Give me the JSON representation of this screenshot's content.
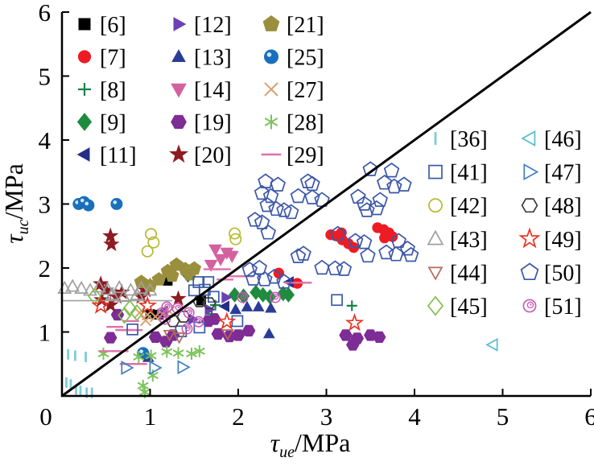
{
  "chart_data": {
    "type": "scatter",
    "title": "",
    "xlabel_tau": "τ",
    "xlabel_sub": "ue",
    "xlabel_unit": "/MPa",
    "ylabel_tau": "τ",
    "ylabel_sub": "uc",
    "ylabel_unit": "/MPa",
    "xlim": [
      0,
      6
    ],
    "ylim": [
      0,
      6
    ],
    "x_axis": {
      "ticks": [
        "0",
        "1",
        "2",
        "3",
        "4",
        "5",
        "6"
      ]
    },
    "y_axis": {
      "ticks": [
        "0",
        "1",
        "2",
        "3",
        "4",
        "5",
        "6"
      ]
    },
    "reference_line": {
      "from": [
        0,
        0
      ],
      "to": [
        6,
        6
      ],
      "color": "#000000",
      "width": 3
    },
    "legend_left": {
      "cols": [
        [
          "[6]",
          "[7]",
          "[8]",
          "[9]",
          "[11]"
        ],
        [
          "[12]",
          "[13]",
          "[14]",
          "[19]",
          "[20]"
        ],
        [
          "[21]",
          "[25]",
          "[27]",
          "[28]",
          "[29]"
        ]
      ]
    },
    "legend_right": {
      "cols": [
        [
          "[36]",
          "[41]",
          "[42]",
          "[43]",
          "[44]",
          "[45]"
        ],
        [
          "[46]",
          "[47]",
          "[48]",
          "[49]",
          "[50]",
          "[51]"
        ]
      ]
    },
    "series": [
      {
        "ref": "[6]",
        "marker": "square",
        "filled": true,
        "color": "#000000",
        "size": 11,
        "points": [
          [
            1.2,
            1.8
          ],
          [
            1.0,
            1.28
          ],
          [
            1.1,
            1.27
          ],
          [
            1.58,
            1.49
          ]
        ]
      },
      {
        "ref": "[7]",
        "marker": "circle",
        "filled": true,
        "color": "#ed1c24",
        "size": 13,
        "points": [
          [
            3.05,
            2.52
          ],
          [
            3.12,
            2.5
          ],
          [
            3.18,
            2.44
          ],
          [
            3.25,
            2.38
          ],
          [
            3.31,
            2.32
          ],
          [
            3.17,
            2.55
          ],
          [
            3.58,
            2.63
          ],
          [
            3.65,
            2.6
          ],
          [
            3.71,
            2.55
          ],
          [
            3.66,
            2.47
          ],
          [
            3.75,
            2.49
          ],
          [
            2.67,
            1.76
          ],
          [
            2.46,
            1.92
          ]
        ]
      },
      {
        "ref": "[8]",
        "marker": "plus",
        "filled": false,
        "color": "#16834a",
        "size": 13,
        "points": [
          [
            1.74,
            1.42
          ],
          [
            1.7,
            1.28
          ],
          [
            3.29,
            1.41
          ]
        ]
      },
      {
        "ref": "[9]",
        "marker": "diamond",
        "filled": true,
        "color": "#1e8b3e",
        "size": 14,
        "points": [
          [
            1.43,
            1.89
          ],
          [
            1.96,
            1.58
          ],
          [
            2.06,
            1.56
          ],
          [
            2.28,
            1.58
          ],
          [
            2.36,
            1.55
          ],
          [
            2.51,
            1.6
          ],
          [
            2.57,
            1.58
          ],
          [
            2.2,
            1.62
          ]
        ]
      },
      {
        "ref": "[11]",
        "marker": "tri-left",
        "filled": true,
        "color": "#252f87",
        "size": 13,
        "points": [
          [
            1.85,
            1.4
          ],
          [
            2.58,
            1.78
          ],
          [
            1.15,
            1.32
          ]
        ]
      },
      {
        "ref": "[12]",
        "marker": "tri-right",
        "filled": true,
        "color": "#6b42b4",
        "size": 13,
        "points": [
          [
            1.48,
            1.2
          ],
          [
            1.86,
            1.54
          ],
          [
            1.67,
            1.35
          ]
        ]
      },
      {
        "ref": "[13]",
        "marker": "tri-up",
        "filled": true,
        "color": "#2a3d96",
        "size": 13,
        "points": [
          [
            2.1,
            1.39
          ],
          [
            2.23,
            1.39
          ],
          [
            2.37,
            1.37
          ],
          [
            1.97,
            1.35
          ],
          [
            2.35,
            0.97
          ],
          [
            0.98,
            0.6
          ]
        ]
      },
      {
        "ref": "[14]",
        "marker": "tri-down",
        "filled": true,
        "color": "#d4619f",
        "size": 15,
        "points": [
          [
            1.74,
            2.29
          ],
          [
            1.87,
            2.24
          ],
          [
            1.8,
            2.14
          ],
          [
            1.69,
            2.05
          ],
          [
            1.93,
            2.19
          ]
        ]
      },
      {
        "ref": "[19]",
        "marker": "hexagon",
        "filled": true,
        "color": "#7e2c96",
        "size": 14,
        "points": [
          [
            0.55,
            0.91
          ],
          [
            0.63,
            1.27
          ],
          [
            1.06,
            0.92
          ],
          [
            1.18,
            0.85
          ],
          [
            1.26,
            0.95
          ],
          [
            1.73,
            1.2
          ],
          [
            1.66,
            1.17
          ],
          [
            1.77,
            0.97
          ],
          [
            1.9,
            0.93
          ],
          [
            2.0,
            0.95
          ],
          [
            2.12,
            1.02
          ],
          [
            3.22,
            0.95
          ],
          [
            3.35,
            0.9
          ],
          [
            3.5,
            0.95
          ],
          [
            3.6,
            0.92
          ],
          [
            3.3,
            0.8
          ]
        ]
      },
      {
        "ref": "[20]",
        "marker": "star",
        "filled": true,
        "color": "#8e1b22",
        "size": 14,
        "points": [
          [
            0.55,
            2.5
          ],
          [
            0.56,
            2.37
          ],
          [
            0.44,
            1.75
          ],
          [
            0.5,
            1.65
          ],
          [
            0.45,
            1.5
          ],
          [
            0.55,
            1.42
          ],
          [
            0.62,
            1.55
          ],
          [
            0.68,
            1.62
          ],
          [
            0.9,
            1.55
          ],
          [
            0.95,
            1.65
          ],
          [
            1.0,
            1.72
          ],
          [
            1.32,
            1.52
          ]
        ]
      },
      {
        "ref": "[21]",
        "marker": "pentagon",
        "filled": true,
        "color": "#9a8f3d",
        "size": 15,
        "points": [
          [
            0.9,
            1.78
          ],
          [
            1.0,
            1.72
          ],
          [
            1.1,
            1.82
          ],
          [
            1.2,
            1.95
          ],
          [
            1.3,
            2.05
          ],
          [
            1.4,
            1.98
          ],
          [
            1.5,
            1.99
          ],
          [
            1.25,
            1.88
          ],
          [
            1.45,
            1.9
          ]
        ]
      },
      {
        "ref": "[25]",
        "marker": "sphere",
        "filled": true,
        "color": "#1a6fba",
        "size": 14,
        "points": [
          [
            0.19,
            3.0
          ],
          [
            0.25,
            3.03
          ],
          [
            0.3,
            2.98
          ],
          [
            0.62,
            3.0
          ],
          [
            0.92,
            0.67
          ]
        ]
      },
      {
        "ref": "[27]",
        "marker": "xcross",
        "filled": false,
        "color": "#daa170",
        "size": 13,
        "points": [
          [
            0.88,
            1.3
          ],
          [
            0.97,
            1.27
          ],
          [
            1.06,
            1.24
          ],
          [
            1.14,
            1.28
          ],
          [
            0.95,
            1.18
          ],
          [
            1.22,
            1.32
          ]
        ]
      },
      {
        "ref": "[28]",
        "marker": "asterisk",
        "filled": false,
        "color": "#7cc25b",
        "size": 15,
        "points": [
          [
            0.47,
            0.66
          ],
          [
            0.87,
            0.61
          ],
          [
            1.01,
            0.63
          ],
          [
            1.19,
            0.69
          ],
          [
            1.32,
            0.67
          ],
          [
            1.03,
            0.32
          ],
          [
            0.92,
            0.16
          ],
          [
            1.47,
            0.66
          ],
          [
            0.94,
            0.06
          ],
          [
            1.56,
            0.7
          ]
        ]
      },
      {
        "ref": "[29]",
        "marker": "dash",
        "filled": false,
        "color": "#e070a8",
        "size": 16,
        "points": [
          [
            0.52,
            0.7
          ],
          [
            0.66,
            0.7
          ],
          [
            0.7,
            1.03
          ],
          [
            0.82,
            1.03
          ],
          [
            0.6,
            1.08
          ],
          [
            0.78,
            1.17
          ],
          [
            0.75,
            0.5
          ],
          [
            0.87,
            0.5
          ],
          [
            1.7,
            1.98
          ],
          [
            1.82,
            1.98
          ],
          [
            1.97,
            1.87
          ],
          [
            2.08,
            1.87
          ],
          [
            1.85,
            1.82
          ],
          [
            2.62,
            1.77
          ],
          [
            2.74,
            1.77
          ]
        ]
      },
      {
        "ref": "[36]",
        "marker": "vbar",
        "filled": false,
        "color": "#7fccd8",
        "size": 13,
        "points": [
          [
            0.07,
            0.65
          ],
          [
            0.15,
            0.63
          ],
          [
            0.27,
            0.61
          ],
          [
            0.05,
            0.21
          ],
          [
            0.1,
            0.18
          ],
          [
            0.16,
            0.1
          ],
          [
            0.21,
            0.08
          ],
          [
            0.28,
            0.05
          ],
          [
            0.34,
            0.05
          ]
        ]
      },
      {
        "ref": "[41]",
        "marker": "square",
        "filled": false,
        "color": "#3a5aa8",
        "size": 13,
        "points": [
          [
            1.55,
            1.78
          ],
          [
            1.66,
            1.78
          ],
          [
            1.5,
            1.65
          ],
          [
            1.62,
            1.66
          ],
          [
            1.72,
            1.55
          ],
          [
            1.56,
            1.07
          ],
          [
            0.8,
            1.04
          ],
          [
            1.35,
            1.01
          ],
          [
            1.99,
            1.17
          ],
          [
            3.12,
            1.5
          ]
        ]
      },
      {
        "ref": "[42]",
        "marker": "circle",
        "filled": false,
        "color": "#b8b832",
        "size": 14,
        "points": [
          [
            1.01,
            2.53
          ],
          [
            1.04,
            2.4
          ],
          [
            0.97,
            2.26
          ],
          [
            1.97,
            2.45
          ],
          [
            1.96,
            2.54
          ]
        ]
      },
      {
        "ref": "[43]",
        "marker": "tri-up",
        "filled": false,
        "color": "#a0a0a0",
        "size": 15,
        "baseline": {
          "y": 1.49,
          "x1": 0.0,
          "x2": 1.25
        },
        "points": [
          [
            0.03,
            1.68
          ],
          [
            0.12,
            1.71
          ],
          [
            0.22,
            1.68
          ],
          [
            0.32,
            1.65
          ],
          [
            0.42,
            1.7
          ],
          [
            0.52,
            1.66
          ],
          [
            0.65,
            1.69
          ],
          [
            0.78,
            1.65
          ],
          [
            0.9,
            1.68
          ],
          [
            1.0,
            1.65
          ],
          [
            0.57,
            1.58
          ],
          [
            0.85,
            1.58
          ],
          [
            0.7,
            1.55
          ]
        ]
      },
      {
        "ref": "[44]",
        "marker": "tri-down",
        "filled": false,
        "color": "#b5685c",
        "size": 13,
        "points": [
          [
            1.22,
            0.96
          ],
          [
            1.33,
            0.92
          ],
          [
            1.88,
            0.97
          ]
        ]
      },
      {
        "ref": "[45]",
        "marker": "diamond",
        "filled": false,
        "color": "#83bd52",
        "size": 15,
        "points": [
          [
            0.37,
            1.56
          ],
          [
            0.77,
            1.37
          ],
          [
            0.71,
            1.26
          ],
          [
            0.85,
            1.3
          ]
        ]
      },
      {
        "ref": "[46]",
        "marker": "tri-left",
        "filled": false,
        "color": "#55bccd",
        "size": 14,
        "points": [
          [
            4.89,
            0.8
          ]
        ]
      },
      {
        "ref": "[47]",
        "marker": "tri-right",
        "filled": false,
        "color": "#3f7fc1",
        "size": 15,
        "points": [
          [
            0.73,
            0.44
          ],
          [
            1.05,
            0.44
          ],
          [
            1.37,
            0.45
          ]
        ]
      },
      {
        "ref": "[48]",
        "marker": "hexagon",
        "filled": false,
        "color": "#3c3c3c",
        "size": 14,
        "points": [
          [
            1.56,
            1.48
          ],
          [
            1.67,
            1.45
          ],
          [
            1.26,
            1.17
          ],
          [
            1.38,
            1.24
          ]
        ]
      },
      {
        "ref": "[49]",
        "marker": "star",
        "filled": false,
        "color": "#e93323",
        "size": 15,
        "points": [
          [
            0.44,
            1.41
          ],
          [
            0.97,
            1.41
          ],
          [
            1.87,
            1.16
          ],
          [
            3.32,
            1.14
          ]
        ]
      },
      {
        "ref": "[50]",
        "marker": "pentagon",
        "filled": false,
        "color": "#3b57a8",
        "size": 16,
        "points": [
          [
            2.31,
            3.35
          ],
          [
            2.45,
            3.3
          ],
          [
            2.27,
            3.17
          ],
          [
            2.37,
            3.12
          ],
          [
            2.79,
            3.35
          ],
          [
            2.84,
            3.31
          ],
          [
            2.68,
            3.12
          ],
          [
            2.84,
            3.1
          ],
          [
            2.95,
            3.06
          ],
          [
            2.33,
            2.98
          ],
          [
            2.43,
            2.92
          ],
          [
            2.52,
            2.9
          ],
          [
            2.6,
            2.87
          ],
          [
            2.19,
            2.75
          ],
          [
            2.27,
            2.71
          ],
          [
            2.34,
            2.55
          ],
          [
            3.5,
            3.54
          ],
          [
            3.74,
            3.52
          ],
          [
            3.66,
            3.33
          ],
          [
            3.88,
            3.3
          ],
          [
            3.77,
            3.27
          ],
          [
            3.36,
            3.11
          ],
          [
            3.61,
            3.06
          ],
          [
            3.43,
            3.0
          ],
          [
            3.46,
            2.9
          ],
          [
            3.57,
            2.93
          ],
          [
            3.13,
            2.53
          ],
          [
            3.33,
            2.42
          ],
          [
            3.43,
            2.4
          ],
          [
            3.82,
            2.42
          ],
          [
            3.47,
            2.19
          ],
          [
            3.68,
            2.24
          ],
          [
            3.79,
            2.21
          ],
          [
            3.92,
            2.3
          ],
          [
            3.96,
            2.2
          ],
          [
            2.68,
            2.18
          ],
          [
            2.74,
            2.22
          ],
          [
            2.13,
            1.97
          ],
          [
            2.24,
            2.0
          ],
          [
            2.17,
            1.83
          ],
          [
            2.3,
            1.82
          ],
          [
            2.41,
            1.86
          ],
          [
            2.95,
            2.0
          ],
          [
            3.1,
            1.99
          ],
          [
            3.2,
            1.98
          ],
          [
            2.52,
            1.78
          ]
        ]
      },
      {
        "ref": "[51]",
        "marker": "spiral",
        "filled": false,
        "color": "#c759b5",
        "size": 13,
        "points": [
          [
            1.14,
            1.3
          ],
          [
            1.19,
            1.39
          ],
          [
            1.31,
            1.37
          ],
          [
            1.44,
            1.3
          ],
          [
            1.55,
            1.16
          ],
          [
            1.42,
            1.05
          ],
          [
            1.17,
            1.2
          ],
          [
            2.05,
            1.54
          ],
          [
            2.42,
            1.54
          ]
        ]
      }
    ]
  }
}
